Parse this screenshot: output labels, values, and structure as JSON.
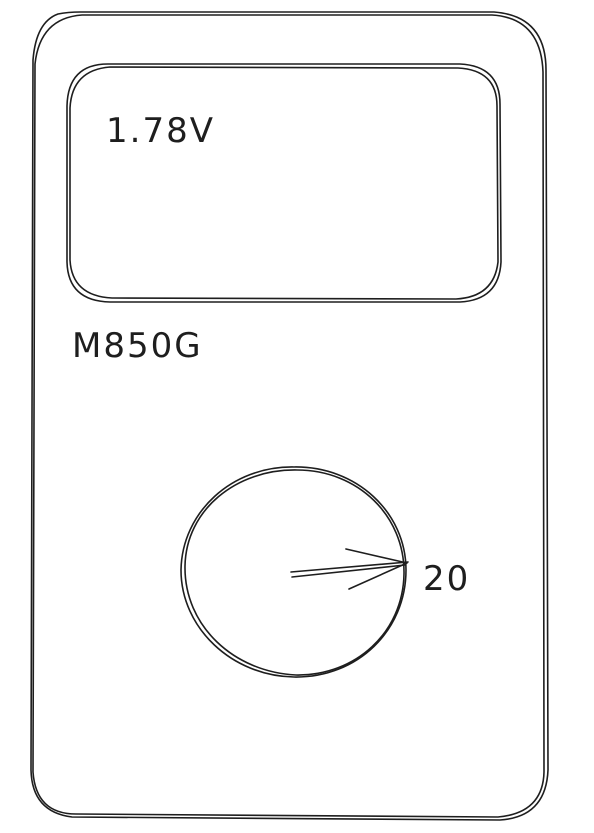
{
  "device": {
    "display_reading": "1.78V",
    "model_label": "M850G",
    "dial_setting": "20"
  },
  "colors": {
    "ink": "#1e1e1e",
    "background": "#ffffff"
  }
}
